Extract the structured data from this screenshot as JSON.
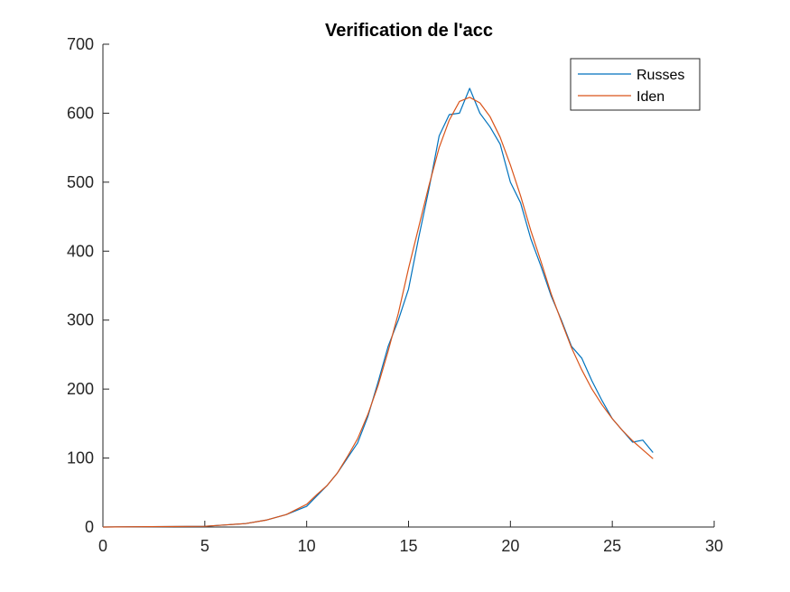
{
  "chart_data": {
    "type": "line",
    "title": "Verification de l'acc",
    "xlabel": "",
    "ylabel": "",
    "xlim": [
      0,
      30
    ],
    "ylim": [
      0,
      700
    ],
    "xticks": [
      0,
      5,
      10,
      15,
      20,
      25,
      30
    ],
    "yticks": [
      0,
      100,
      200,
      300,
      400,
      500,
      600,
      700
    ],
    "grid": false,
    "legend_position": "top-right",
    "series": [
      {
        "name": "Russes",
        "color": "#0072BD",
        "x": [
          0,
          5,
          7,
          8,
          9,
          10,
          10.5,
          11,
          11.5,
          12,
          12.5,
          13,
          13.5,
          14,
          14.5,
          15,
          15.5,
          16,
          16.5,
          17,
          17.5,
          18,
          18.5,
          19,
          19.5,
          20,
          20.5,
          21,
          21.5,
          22,
          22.5,
          23,
          23.5,
          24,
          24.5,
          25,
          25.5,
          26,
          26.5,
          27
        ],
        "y": [
          0,
          1,
          5,
          10,
          18,
          30,
          45,
          60,
          78,
          100,
          122,
          160,
          210,
          262,
          300,
          345,
          420,
          490,
          567,
          598,
          600,
          636,
          600,
          580,
          555,
          500,
          470,
          418,
          378,
          335,
          300,
          262,
          245,
          212,
          183,
          157,
          140,
          123,
          126,
          108
        ]
      },
      {
        "name": "Iden",
        "color": "#D95319",
        "x": [
          0,
          5,
          7,
          8,
          9,
          10,
          10.5,
          11,
          11.5,
          12,
          12.5,
          13,
          13.5,
          14,
          14.5,
          15,
          15.5,
          16,
          16.5,
          17,
          17.5,
          18,
          18.5,
          19,
          19.5,
          20,
          20.5,
          21,
          21.5,
          22,
          22.5,
          23,
          23.5,
          24,
          24.5,
          25,
          25.5,
          26,
          26.5,
          27
        ],
        "y": [
          0,
          1,
          5,
          10,
          18,
          33,
          47,
          60,
          78,
          102,
          128,
          163,
          205,
          255,
          310,
          375,
          435,
          495,
          550,
          590,
          617,
          623,
          615,
          595,
          565,
          525,
          480,
          430,
          385,
          338,
          298,
          260,
          228,
          200,
          177,
          157,
          140,
          125,
          112,
          99
        ]
      }
    ]
  }
}
